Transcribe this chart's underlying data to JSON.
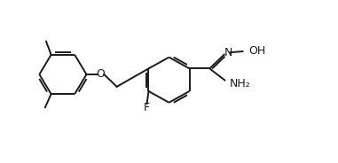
{
  "bg_color": "#ffffff",
  "line_color": "#1a1a1a",
  "line_width": 1.4,
  "font_size": 8.5,
  "fig_width": 3.81,
  "fig_height": 1.84,
  "dpi": 100,
  "xlim": [
    0,
    10
  ],
  "ylim": [
    0,
    5
  ]
}
